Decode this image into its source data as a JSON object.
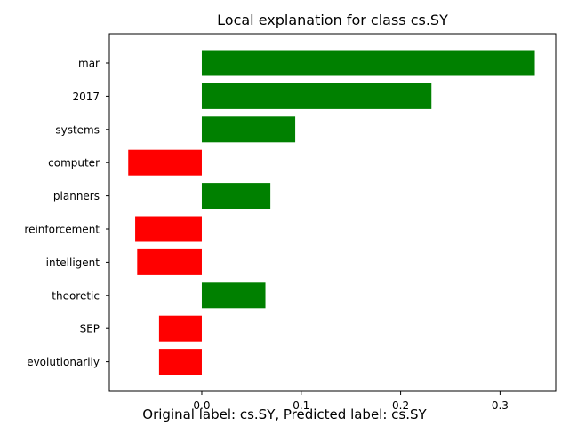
{
  "chart_data": {
    "type": "bar",
    "orientation": "horizontal",
    "title": "Local explanation for class cs.SY",
    "xlabel": "",
    "ylabel": "",
    "categories": [
      "mar",
      "2017",
      "systems",
      "computer",
      "planners",
      "reinforcement",
      "intelligent",
      "theoretic",
      "SEP",
      "evolutionarily"
    ],
    "values": [
      0.335,
      0.231,
      0.094,
      -0.074,
      0.069,
      -0.067,
      -0.065,
      0.064,
      -0.043,
      -0.043
    ],
    "xlim": [
      -0.093,
      0.356
    ],
    "x_ticks": [
      "0.0",
      "0.1",
      "0.2",
      "0.3"
    ],
    "colors": {
      "positive": "#008000",
      "negative": "#ff0000"
    },
    "grid": false,
    "legend": "none"
  },
  "caption": "Original label: cs.SY, Predicted label: cs.SY"
}
